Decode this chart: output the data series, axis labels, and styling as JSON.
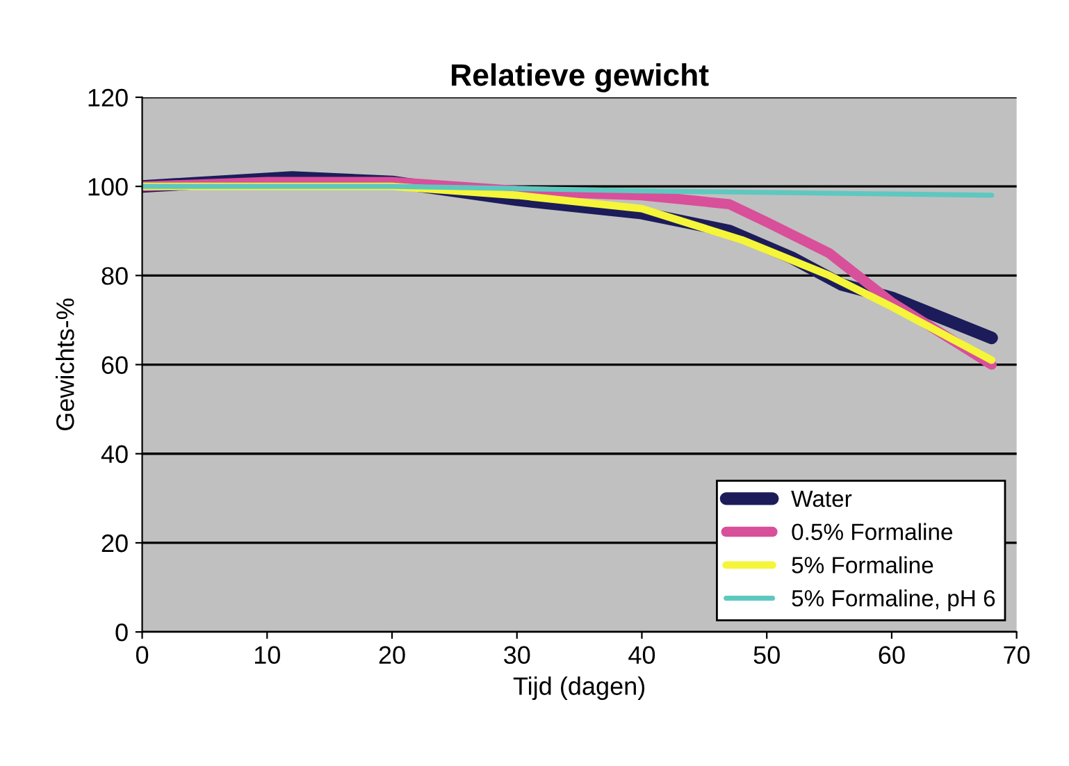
{
  "chart_data": {
    "type": "line",
    "title": "Relatieve gewicht",
    "xlabel": "Tijd (dagen)",
    "ylabel": "Gewichts-%",
    "xlim": [
      0,
      70
    ],
    "xticks": [
      0,
      10,
      20,
      30,
      40,
      50,
      60,
      70
    ],
    "ylim": [
      0,
      120
    ],
    "yticks": [
      0,
      20,
      40,
      60,
      80,
      100,
      120
    ],
    "grid": "y",
    "legend": "bottom right",
    "marker": "none",
    "line_style": "solid",
    "series": [
      {
        "name": "Water",
        "color": "#1c1c5a",
        "x": [
          0,
          6,
          12,
          20,
          30,
          40,
          47,
          52,
          56,
          60,
          68
        ],
        "values": [
          100,
          101,
          102,
          101,
          97,
          94,
          90,
          84,
          78,
          75,
          66
        ]
      },
      {
        "name": "0.5% Formaline",
        "color": "#d84f9a",
        "x": [
          0,
          10,
          20,
          30,
          40,
          47,
          50,
          55,
          60,
          68
        ],
        "values": [
          100,
          101,
          101,
          99,
          98,
          96,
          92,
          85,
          74,
          60
        ]
      },
      {
        "name": "5% Formaline",
        "color": "#f5f53a",
        "x": [
          0,
          20,
          30,
          40,
          48,
          55,
          60,
          68
        ],
        "values": [
          100,
          100,
          98,
          95,
          88,
          80,
          73,
          61
        ]
      },
      {
        "name": "5% Formaline, pH 6",
        "color": "#5ec8c0",
        "x": [
          0,
          20,
          40,
          68
        ],
        "values": [
          100,
          100,
          99,
          98
        ]
      }
    ]
  }
}
